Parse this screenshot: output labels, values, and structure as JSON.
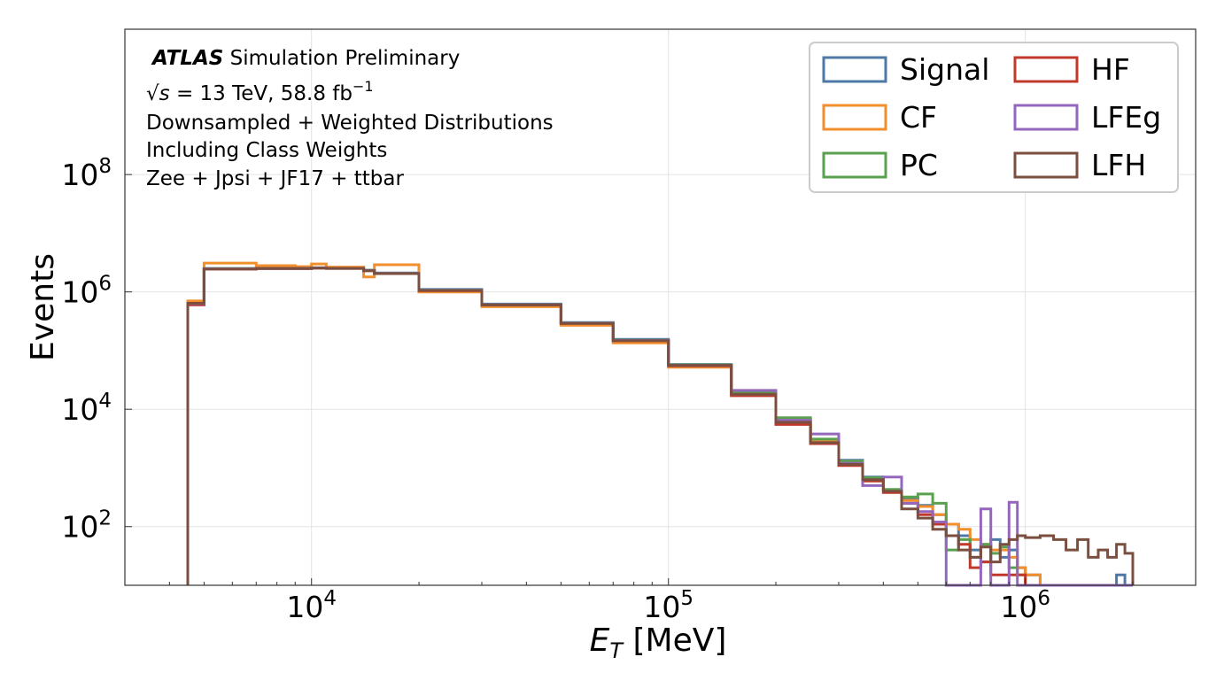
{
  "chart_data": {
    "type": "histogram-step",
    "xlabel": "E_T [MeV]",
    "xlabel_main": "E",
    "xlabel_sub": "T",
    "xlabel_rest": " [MeV]",
    "ylabel": "Events",
    "x_scale": "log",
    "y_scale": "log",
    "xlim": [
      3000,
      3000000
    ],
    "ylim": [
      10,
      30000000000
    ],
    "x_ticks": [
      {
        "value": 10000,
        "base": "10",
        "exp": "4"
      },
      {
        "value": 100000,
        "base": "10",
        "exp": "5"
      },
      {
        "value": 1000000,
        "base": "10",
        "exp": "6"
      }
    ],
    "y_ticks": [
      {
        "value": 100,
        "base": "10",
        "exp": "2"
      },
      {
        "value": 10000,
        "base": "10",
        "exp": "4"
      },
      {
        "value": 1000000,
        "base": "10",
        "exp": "6"
      },
      {
        "value": 100000000,
        "base": "10",
        "exp": "8"
      }
    ],
    "grid": true,
    "legend_position": "top-right",
    "annotations": {
      "atlas": "ATLAS",
      "atlas_rest": " Simulation Preliminary",
      "energy_sqrt": "√",
      "energy_s": "s",
      "energy_rest": " = 13 TeV,  58.8 fb",
      "energy_exp": "−1",
      "line3": "Downsampled + Weighted Distributions",
      "line4": "Including Class Weights",
      "line5": "Zee + Jpsi + JF17 + ttbar"
    },
    "bin_edges": [
      4500,
      5000,
      7000,
      9000,
      10000,
      11000,
      14000,
      15000,
      20000,
      30000,
      50000,
      70000,
      100000,
      150000,
      200000,
      250000,
      300000,
      350000,
      400000,
      450000,
      500000,
      550000,
      600000,
      650000,
      700000,
      750000,
      800000,
      850000,
      900000,
      950000,
      1000000,
      1100000,
      1200000,
      1300000,
      1400000,
      1500000,
      1600000,
      1700000,
      1800000,
      1900000,
      2000000
    ],
    "series": [
      {
        "name": "Signal",
        "color": "#4e79a7",
        "values": [
          650000,
          2500000,
          2550000,
          2550000,
          2580000,
          2550000,
          2350000,
          2100000,
          1100000,
          620000,
          300000,
          155000,
          58000,
          19000,
          7000,
          3000,
          1350,
          700,
          420,
          300,
          230,
          160,
          110,
          70,
          40,
          25,
          60,
          30,
          40,
          20,
          15,
          10,
          10,
          10,
          10,
          10,
          10,
          10,
          15,
          10
        ]
      },
      {
        "name": "CF",
        "color": "#f28e2b",
        "values": [
          700000,
          3100000,
          2800000,
          2700000,
          3000000,
          2650000,
          1800000,
          2900000,
          1000000,
          560000,
          270000,
          135000,
          52000,
          18000,
          6800,
          2900,
          1300,
          650,
          400,
          280,
          220,
          160,
          110,
          90,
          60,
          50,
          40,
          40,
          30,
          20,
          15,
          10,
          10,
          10,
          10,
          10,
          10,
          10,
          10,
          10
        ]
      },
      {
        "name": "PC",
        "color": "#59a14f",
        "values": [
          620000,
          2500000,
          2520000,
          2520000,
          2560000,
          2530000,
          2330000,
          2080000,
          1080000,
          610000,
          295000,
          150000,
          57000,
          19500,
          7200,
          3100,
          1300,
          680,
          430,
          320,
          360,
          250,
          40,
          60,
          30,
          50,
          35,
          45,
          20,
          15,
          10,
          10,
          10,
          10,
          10,
          10,
          10,
          10,
          10,
          10
        ]
      },
      {
        "name": "HF",
        "color": "#c0392b",
        "values": [
          600000,
          2450000,
          2500000,
          2500000,
          2550000,
          2520000,
          2300000,
          2050000,
          1050000,
          600000,
          290000,
          148000,
          55000,
          17000,
          5500,
          2600,
          1100,
          600,
          380,
          250,
          160,
          110,
          70,
          50,
          20,
          25,
          15,
          15,
          15,
          15,
          10,
          10,
          10,
          10,
          10,
          10,
          10,
          10,
          10,
          10
        ]
      },
      {
        "name": "LFEg",
        "color": "#9467bd",
        "values": [
          630000,
          2480000,
          2510000,
          2510000,
          2560000,
          2530000,
          2320000,
          2070000,
          1070000,
          605000,
          293000,
          149000,
          56000,
          21000,
          6500,
          3800,
          1200,
          500,
          700,
          250,
          180,
          120,
          5,
          5,
          10,
          200,
          5,
          5,
          260,
          5,
          5,
          5,
          10,
          10,
          10,
          10,
          10,
          10,
          10,
          10
        ]
      },
      {
        "name": "LFH",
        "color": "#7b4f3f",
        "values": [
          640000,
          2450000,
          2500000,
          2500000,
          2550000,
          2520000,
          2300000,
          2050000,
          1060000,
          600000,
          290000,
          148000,
          56000,
          18000,
          6000,
          2700,
          1150,
          630,
          400,
          200,
          140,
          90,
          70,
          40,
          30,
          45,
          25,
          50,
          60,
          70,
          65,
          70,
          60,
          40,
          60,
          30,
          40,
          30,
          50,
          35
        ]
      }
    ]
  }
}
